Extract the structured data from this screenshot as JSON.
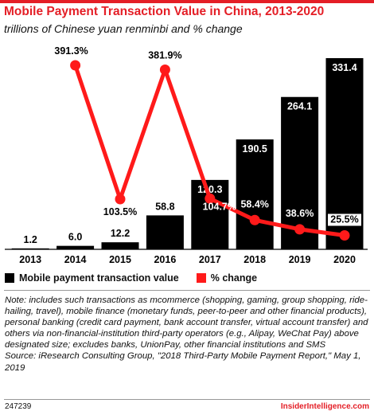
{
  "header": {
    "title": "Mobile Payment Transaction Value in China, 2013-2020",
    "subtitle": "trillions of Chinese yuan renminbi and % change"
  },
  "chart_data": {
    "type": "bar",
    "categories": [
      "2013",
      "2014",
      "2015",
      "2016",
      "2017",
      "2018",
      "2019",
      "2020"
    ],
    "series": [
      {
        "name": "Mobile payment transaction value",
        "type": "bar",
        "color": "#000000",
        "values": [
          1.2,
          6.0,
          12.2,
          58.8,
          120.3,
          190.5,
          264.1,
          331.4
        ],
        "labels": [
          "1.2",
          "6.0",
          "12.2",
          "58.8",
          "120.3",
          "190.5",
          "264.1",
          "331.4"
        ]
      },
      {
        "name": "% change",
        "type": "line",
        "color": "#ff1a1a",
        "x": [
          "2014",
          "2015",
          "2016",
          "2017",
          "2018",
          "2019",
          "2020"
        ],
        "values": [
          391.3,
          103.5,
          381.9,
          104.7,
          58.4,
          38.6,
          25.5
        ],
        "labels": [
          "391.3%",
          "103.5%",
          "381.9%",
          "104.7%",
          "58.4%",
          "38.6%",
          "25.5%"
        ]
      }
    ],
    "legend": [
      {
        "label": "Mobile payment transaction value",
        "color": "#000000"
      },
      {
        "label": "% change",
        "color": "#ff1a1a"
      }
    ],
    "legend_position": "bottom-left",
    "grid": false
  },
  "footer": {
    "note": "Note: includes such transactions as mcommerce (shopping, gaming, group shopping, ride-hailing, travel), mobile finance (monetary funds, peer-to-peer and other financial products), personal banking (credit card payment, bank account transfer, virtual account transfer) and others via non-financial-institution third-party operators (e.g., Alipay, WeChat Pay) above designated size; excludes banks, UnionPay, other financial institutions and SMS",
    "source": "Source: iResearch Consulting Group, \"2018 Third-Party Mobile Payment Report,\" May 1, 2019",
    "id": "247239",
    "brand": "InsiderIntelligence.com"
  }
}
